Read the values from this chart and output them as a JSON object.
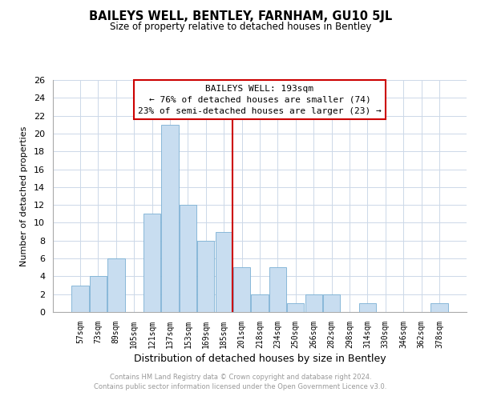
{
  "title": "BAILEYS WELL, BENTLEY, FARNHAM, GU10 5JL",
  "subtitle": "Size of property relative to detached houses in Bentley",
  "xlabel": "Distribution of detached houses by size in Bentley",
  "ylabel": "Number of detached properties",
  "bar_labels": [
    "57sqm",
    "73sqm",
    "89sqm",
    "105sqm",
    "121sqm",
    "137sqm",
    "153sqm",
    "169sqm",
    "185sqm",
    "201sqm",
    "218sqm",
    "234sqm",
    "250sqm",
    "266sqm",
    "282sqm",
    "298sqm",
    "314sqm",
    "330sqm",
    "346sqm",
    "362sqm",
    "378sqm"
  ],
  "bar_values": [
    3,
    4,
    6,
    0,
    11,
    21,
    12,
    8,
    9,
    5,
    2,
    5,
    1,
    2,
    2,
    0,
    1,
    0,
    0,
    0,
    1
  ],
  "bar_color": "#c8ddf0",
  "bar_edge_color": "#7ab0d4",
  "vline_bar_index": 8,
  "vline_color": "#cc0000",
  "ylim_max": 26,
  "yticks": [
    0,
    2,
    4,
    6,
    8,
    10,
    12,
    14,
    16,
    18,
    20,
    22,
    24,
    26
  ],
  "annotation_title": "BAILEYS WELL: 193sqm",
  "annotation_line1": "← 76% of detached houses are smaller (74)",
  "annotation_line2": "23% of semi-detached houses are larger (23) →",
  "footer_line1": "Contains HM Land Registry data © Crown copyright and database right 2024.",
  "footer_line2": "Contains public sector information licensed under the Open Government Licence v3.0.",
  "grid_color": "#ccd8e8",
  "background_color": "#ffffff",
  "spine_color": "#aaaaaa"
}
